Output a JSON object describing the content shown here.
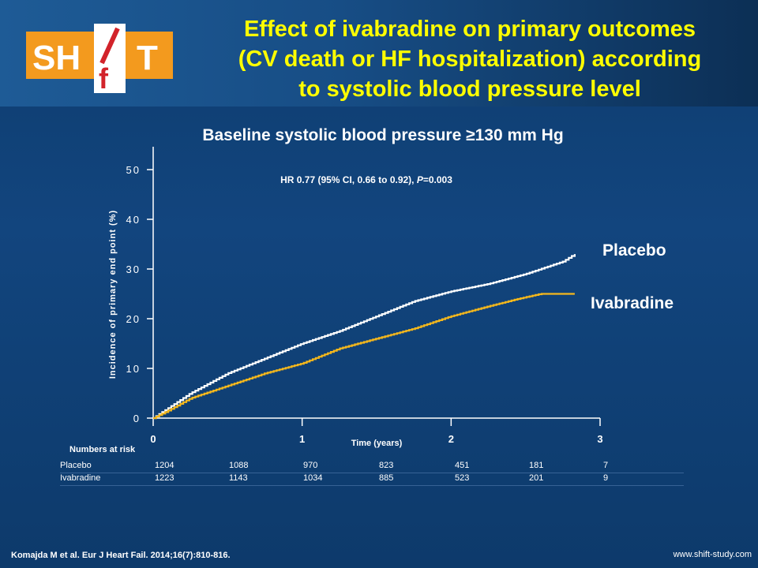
{
  "logo_text": "SHIfT",
  "title_lines": [
    "Effect of ivabradine on primary outcomes",
    "(CV death or HF hospitalization) according",
    "to systolic blood pressure level"
  ],
  "chart_title": "Baseline systolic blood pressure ≥130 mm Hg",
  "hr_text": "HR 0.77 (95% CI, 0.66 to 0.92), ",
  "hr_p_label": "P",
  "hr_p_value": "=0.003",
  "risk_table": {
    "title": "Numbers at risk",
    "rows": [
      {
        "label": "Placebo",
        "values": [
          "1204",
          "1088",
          "970",
          "823",
          "451",
          "181",
          "7"
        ]
      },
      {
        "label": "Ivabradine",
        "values": [
          "1223",
          "1143",
          "1034",
          "885",
          "523",
          "201",
          "9"
        ]
      }
    ]
  },
  "citation": "Komajda M et al. Eur J Heart Fail. 2014;16(7):810-816.",
  "website": "www.shift-study.com",
  "colors": {
    "background": "#12457e",
    "title": "#ffff00",
    "placebo": "#ffffff",
    "ivabradine": "#f5b81c",
    "logo": "#f39a1e"
  },
  "chart_data": {
    "type": "line",
    "xlabel": "Time (years)",
    "ylabel": "Incidence of primary end point (%)",
    "xlim": [
      0,
      3
    ],
    "ylim": [
      0,
      50
    ],
    "x_ticks": [
      "0",
      "1",
      "2",
      "3"
    ],
    "y_ticks": [
      "0",
      "10",
      "20",
      "30",
      "40",
      "50"
    ],
    "series": [
      {
        "name": "Placebo",
        "x": [
          0,
          0.1,
          0.25,
          0.5,
          0.75,
          1.0,
          1.25,
          1.5,
          1.75,
          2.0,
          2.25,
          2.5,
          2.75,
          2.83
        ],
        "y": [
          0,
          2,
          5,
          9,
          12,
          15,
          17.5,
          20.5,
          23.5,
          25.5,
          27,
          29,
          31.5,
          33
        ]
      },
      {
        "name": "Ivabradine",
        "x": [
          0,
          0.1,
          0.25,
          0.5,
          0.75,
          1.0,
          1.25,
          1.5,
          1.75,
          2.0,
          2.25,
          2.45,
          2.6,
          2.83
        ],
        "y": [
          0,
          1.5,
          4,
          6.5,
          9,
          11,
          14,
          16,
          18,
          20.5,
          22.5,
          24,
          25,
          25
        ]
      }
    ]
  }
}
